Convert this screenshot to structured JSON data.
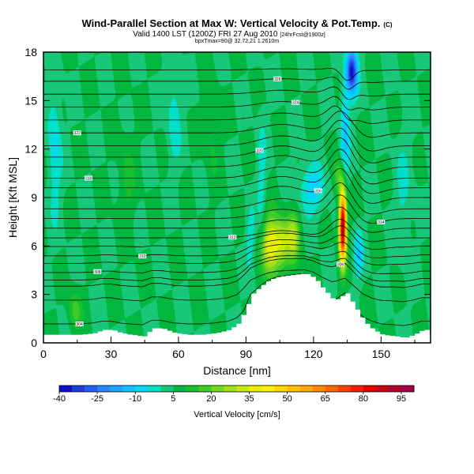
{
  "chart_data": {
    "type": "heatmap",
    "title": "Wind-Parallel Section at Max W: Vertical Velocity & Pot.Temp.",
    "title_mark": "(C)",
    "subtitle": "Valid 1400 LST (1200Z) FRI 27 Aug 2010",
    "subtitle_run": "[24hrFcst@1900z]",
    "subtitle2": "bpxTmax=90@ 32.72,21 1.2610m",
    "xlabel": "Distance [nm]",
    "ylabel": "Height [Kft MSL]",
    "xlim": [
      0,
      172
    ],
    "ylim": [
      0,
      18
    ],
    "x_ticks": [
      "0",
      "30",
      "60",
      "90",
      "120",
      "150"
    ],
    "y_ticks": [
      "0",
      "3",
      "6",
      "9",
      "12",
      "15",
      "18"
    ],
    "colorbar": {
      "label": "Vertical Velocity [cm/s]",
      "tick_labels": [
        "-40",
        "-25",
        "-10",
        "5",
        "20",
        "35",
        "50",
        "65",
        "80",
        "95"
      ],
      "levels": [
        -40,
        -35,
        -30,
        -25,
        -20,
        -15,
        -10,
        -5,
        0,
        5,
        10,
        15,
        20,
        25,
        30,
        35,
        40,
        45,
        50,
        55,
        60,
        65,
        70,
        75,
        80,
        85,
        90,
        95
      ],
      "colors": [
        "#1010c8",
        "#1c3cdc",
        "#2460f0",
        "#2c84ff",
        "#20a4ff",
        "#10c0ff",
        "#00d8f8",
        "#00e0c8",
        "#18c878",
        "#00b840",
        "#18c030",
        "#40cc28",
        "#70d820",
        "#a0e018",
        "#c8e810",
        "#e8f000",
        "#fff000",
        "#ffd800",
        "#ffc000",
        "#ffa800",
        "#ff8800",
        "#ff6800",
        "#ff4000",
        "#f02000",
        "#e00000",
        "#c80018",
        "#b00030",
        "#a00048"
      ]
    },
    "terrain": {
      "x_nm": [
        0,
        8,
        16,
        22,
        26,
        30,
        34,
        38,
        44,
        48,
        52,
        58,
        64,
        70,
        76,
        82,
        86,
        89,
        92,
        96,
        100,
        104,
        110,
        116,
        120,
        124,
        128,
        130,
        134,
        138,
        142,
        146,
        150,
        156,
        160,
        164,
        168,
        172
      ],
      "height_kft": [
        0.5,
        0.5,
        0.5,
        0.6,
        0.8,
        0.8,
        0.6,
        0.5,
        0.4,
        0.9,
        0.9,
        0.6,
        0.5,
        0.5,
        0.6,
        0.8,
        1.2,
        2.0,
        3.0,
        3.5,
        3.9,
        4.1,
        4.2,
        4.3,
        4.0,
        3.3,
        2.7,
        2.7,
        3.1,
        2.2,
        1.3,
        0.8,
        0.5,
        0.4,
        0.3,
        0.5,
        0.8,
        0.8
      ]
    },
    "theta_levels_k": [
      304,
      305,
      306,
      307,
      308,
      309,
      310,
      311,
      312,
      313,
      314,
      315,
      316,
      317,
      318,
      319,
      320,
      321,
      322,
      323,
      324,
      325,
      326,
      327
    ],
    "theta_surface_kft": [
      0.9,
      2.4,
      3.3,
      3.7,
      4.2,
      4.8,
      5.3,
      5.9,
      6.5,
      7.1,
      7.7,
      8.3,
      9.0,
      9.6,
      10.2,
      10.9,
      11.5,
      12.2,
      13.0,
      13.8,
      14.6,
      15.4,
      16.2,
      16.9
    ],
    "updraft_cores": [
      {
        "x_nm": 101,
        "height_kft": 6.0,
        "w_cms": 40
      },
      {
        "x_nm": 110,
        "height_kft": 6.5,
        "w_cms": 30
      },
      {
        "x_nm": 133,
        "height_kft": 7.0,
        "w_cms": 95
      },
      {
        "x_nm": 14,
        "height_kft": 2.0,
        "w_cms": 20
      }
    ],
    "downdraft_cores": [
      {
        "x_nm": 136,
        "height_kft": 17.0,
        "w_cms": -40
      },
      {
        "x_nm": 120,
        "height_kft": 9.0,
        "w_cms": -12
      },
      {
        "x_nm": 140,
        "height_kft": 5.0,
        "w_cms": -10
      },
      {
        "x_nm": 92,
        "height_kft": 6.0,
        "w_cms": -5
      }
    ]
  }
}
